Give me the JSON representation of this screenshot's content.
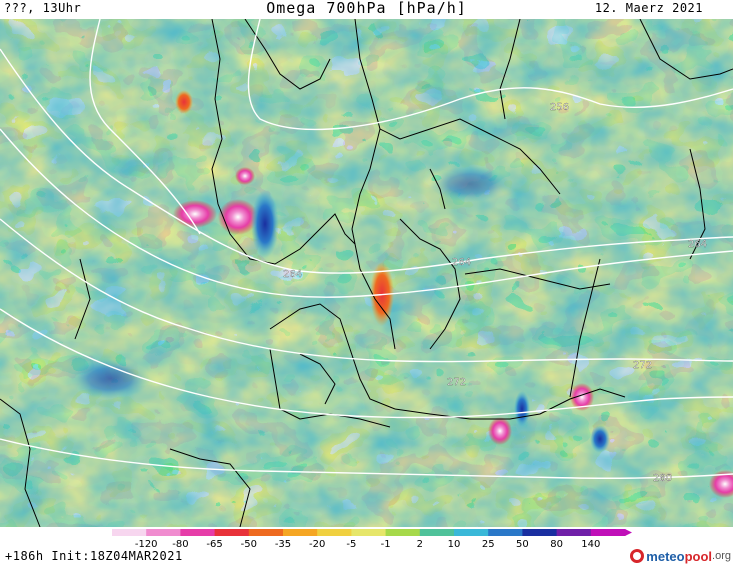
{
  "header": {
    "left": "???, 13Uhr",
    "title": "Omega 700hPa [hPa/h]",
    "right": "12. Maerz 2021"
  },
  "map": {
    "field": "Omega 700hPa",
    "units": "hPa/h",
    "isohypse_labels": [
      "256",
      "264",
      "264",
      "264",
      "272",
      "272",
      "280"
    ],
    "colors": {
      "sea_base": "#45b6cf",
      "coastline": "#000000",
      "contour": "#ffffff"
    }
  },
  "scale": {
    "labels": [
      "-120",
      "-80",
      "-65",
      "-50",
      "-35",
      "-20",
      "-5",
      "-1",
      "2",
      "10",
      "25",
      "50",
      "80",
      "140"
    ],
    "colors": [
      "#f7d6ef",
      "#f08ccf",
      "#e63da8",
      "#e8323a",
      "#ee6a20",
      "#f5a623",
      "#f0d040",
      "#e6e66a",
      "#a6d94a",
      "#4fc29a",
      "#3ab8d8",
      "#2a78c8",
      "#1a2fa0",
      "#7020a8",
      "#c010b8"
    ]
  },
  "footer": {
    "run_info": "+186h Init:18Z04MAR2021",
    "logo_part1": "meteo",
    "logo_part2": "pool",
    "logo_part3": ".org"
  }
}
